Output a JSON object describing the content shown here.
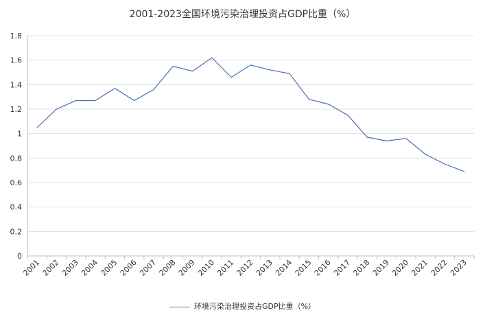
{
  "chart_data": {
    "type": "line",
    "title": "2001-2023全国环境污染治理投资占GDP比重（%）",
    "xlabel": "",
    "ylabel": "",
    "categories": [
      "2001",
      "2002",
      "2003",
      "2004",
      "2005",
      "2006",
      "2007",
      "2008",
      "2009",
      "2010",
      "2011",
      "2012",
      "2013",
      "2014",
      "2015",
      "2016",
      "2017",
      "2018",
      "2019",
      "2020",
      "2021",
      "2022",
      "2023"
    ],
    "series": [
      {
        "name": "环境污染治理投资占GDP比重（%）",
        "color": "#4a6fb3",
        "values": [
          1.05,
          1.2,
          1.27,
          1.27,
          1.37,
          1.27,
          1.36,
          1.55,
          1.51,
          1.62,
          1.46,
          1.56,
          1.52,
          1.49,
          1.28,
          1.24,
          1.15,
          0.97,
          0.94,
          0.96,
          0.83,
          0.75,
          0.69
        ]
      }
    ],
    "ylim": [
      0,
      1.8
    ],
    "yticks": [
      "0",
      "0.2",
      "0.4",
      "0.6",
      "0.8",
      "1",
      "1.2",
      "1.4",
      "1.6",
      "1.8"
    ],
    "grid": true,
    "legend_position": "bottom"
  }
}
